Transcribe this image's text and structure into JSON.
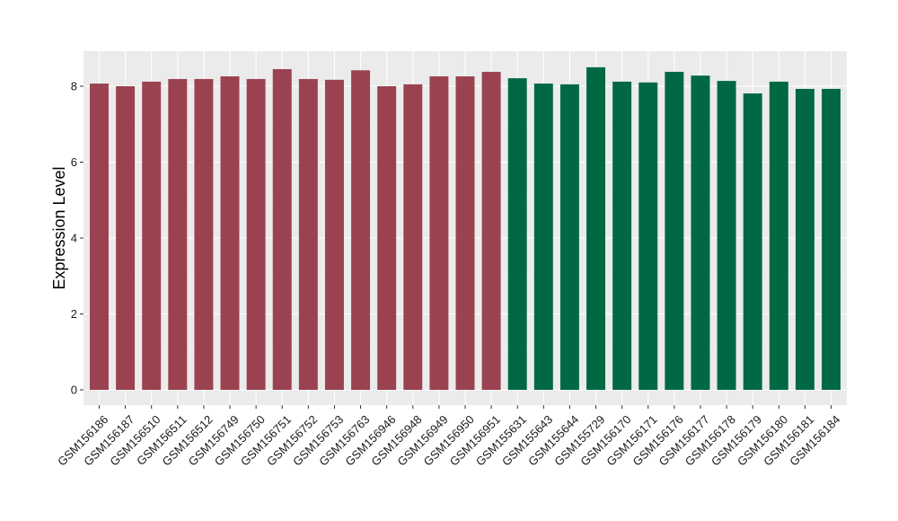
{
  "chart_data": {
    "type": "bar",
    "title": "",
    "xlabel": "",
    "ylabel": "Expression Level",
    "ylim": [
      -0.25,
      8.95
    ],
    "yticks": [
      0,
      2,
      4,
      6,
      8
    ],
    "grid": true,
    "legend": "none",
    "categories": [
      "GSM156186",
      "GSM156187",
      "GSM156510",
      "GSM156511",
      "GSM156512",
      "GSM156749",
      "GSM156750",
      "GSM156751",
      "GSM156752",
      "GSM156753",
      "GSM156763",
      "GSM156946",
      "GSM156948",
      "GSM156949",
      "GSM156950",
      "GSM156951",
      "GSM155631",
      "GSM155643",
      "GSM155644",
      "GSM155729",
      "GSM156170",
      "GSM156171",
      "GSM156176",
      "GSM156177",
      "GSM156178",
      "GSM156179",
      "GSM156180",
      "GSM156181",
      "GSM156184"
    ],
    "values": [
      8.07,
      8.0,
      8.12,
      8.19,
      8.19,
      8.26,
      8.19,
      8.45,
      8.19,
      8.17,
      8.42,
      8.0,
      8.05,
      8.26,
      8.26,
      8.38,
      8.21,
      8.07,
      8.05,
      8.5,
      8.12,
      8.1,
      8.38,
      8.28,
      8.14,
      7.81,
      8.12,
      7.93,
      7.93
    ],
    "groups": [
      0,
      0,
      0,
      0,
      0,
      0,
      0,
      0,
      0,
      0,
      0,
      0,
      0,
      0,
      0,
      0,
      1,
      1,
      1,
      1,
      1,
      1,
      1,
      1,
      1,
      1,
      1,
      1,
      1
    ],
    "colors": {
      "group0": "#9b4250",
      "group1": "#006944",
      "panel": "#ebebeb",
      "grid_major": "#ffffff",
      "grid_minor": "#f5f5f5"
    }
  }
}
